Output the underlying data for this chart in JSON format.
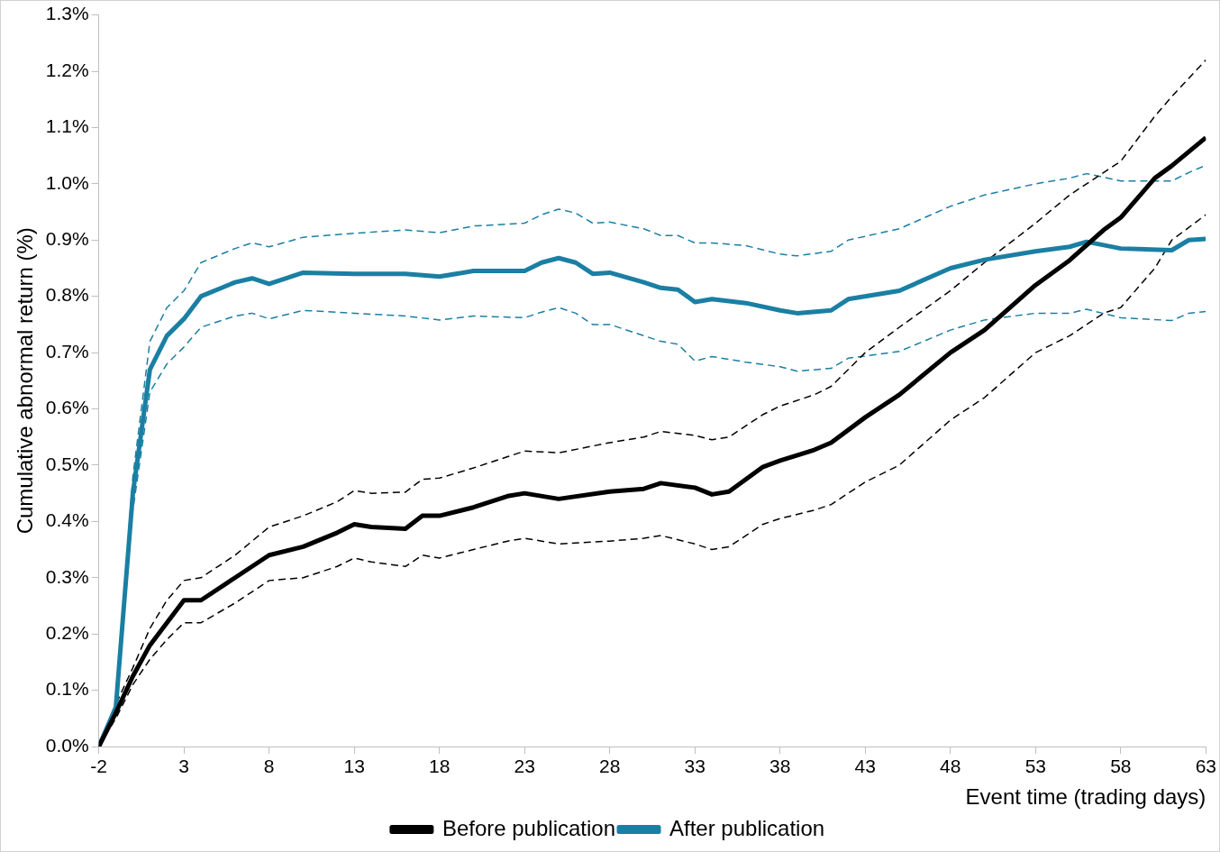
{
  "chart_data": {
    "type": "line",
    "xlabel": "Event time (trading days)",
    "ylabel": "Cumulative abnormal return (%)",
    "xlim": [
      -2,
      63
    ],
    "xticks": [
      -2,
      3,
      8,
      13,
      18,
      23,
      28,
      33,
      38,
      43,
      48,
      53,
      58,
      63
    ],
    "ylim": [
      0,
      1.3
    ],
    "yticks": [
      {
        "value": 0,
        "label": "0.0%"
      },
      {
        "value": 0.1,
        "label": "0.1%"
      },
      {
        "value": 0.2,
        "label": "0.2%"
      },
      {
        "value": 0.3,
        "label": "0.3%"
      },
      {
        "value": 0.4,
        "label": "0.4%"
      },
      {
        "value": 0.5,
        "label": "0.5%"
      },
      {
        "value": 0.6,
        "label": "0.6%"
      },
      {
        "value": 0.7,
        "label": "0.7%"
      },
      {
        "value": 0.8,
        "label": "0.8%"
      },
      {
        "value": 0.9,
        "label": "0.9%"
      },
      {
        "value": 1.0,
        "label": "1.0%"
      },
      {
        "value": 1.1,
        "label": "1.1%"
      },
      {
        "value": 1.2,
        "label": "1.2%"
      },
      {
        "value": 1.3,
        "label": "1.3%"
      }
    ],
    "grid": false,
    "legend": "bottom",
    "marker": "none",
    "line_style": "solid",
    "series": [
      {
        "name": "Before publication",
        "color": "#000000",
        "x": [
          -2,
          -1,
          0,
          1,
          2,
          3,
          4,
          6,
          8,
          10,
          12,
          13,
          14,
          16,
          17,
          18,
          20,
          22,
          23,
          25,
          28,
          30,
          31,
          33,
          34,
          35,
          37,
          38,
          40,
          41,
          43,
          45,
          48,
          50,
          53,
          55,
          57,
          58,
          60,
          61,
          63
        ],
        "values": [
          0,
          0.06,
          0.125,
          0.18,
          0.22,
          0.26,
          0.26,
          0.3,
          0.34,
          0.355,
          0.38,
          0.395,
          0.39,
          0.387,
          0.41,
          0.41,
          0.425,
          0.445,
          0.45,
          0.44,
          0.453,
          0.458,
          0.468,
          0.46,
          0.448,
          0.453,
          0.497,
          0.508,
          0.527,
          0.54,
          0.585,
          0.625,
          0.7,
          0.74,
          0.82,
          0.864,
          0.918,
          0.94,
          1.01,
          1.032,
          1.082
        ]
      },
      {
        "name": "After publication",
        "color": "#1a7fa3",
        "x": [
          -2,
          -1,
          0,
          1,
          2,
          3,
          4,
          6,
          7,
          8,
          10,
          13,
          16,
          18,
          20,
          23,
          24,
          25,
          26,
          27,
          28,
          30,
          31,
          32,
          33,
          34,
          36,
          38,
          39,
          41,
          42,
          45,
          48,
          50,
          53,
          55,
          56,
          58,
          61,
          62,
          63
        ],
        "values": [
          0,
          0.07,
          0.45,
          0.67,
          0.73,
          0.76,
          0.8,
          0.825,
          0.832,
          0.822,
          0.842,
          0.84,
          0.84,
          0.835,
          0.845,
          0.845,
          0.86,
          0.868,
          0.86,
          0.84,
          0.842,
          0.825,
          0.815,
          0.812,
          0.79,
          0.795,
          0.788,
          0.775,
          0.77,
          0.775,
          0.795,
          0.81,
          0.85,
          0.865,
          0.88,
          0.888,
          0.897,
          0.885,
          0.882,
          0.9,
          0.902
        ]
      },
      {
        "color": "#000000",
        "line_style": "dashed",
        "x": [
          -2,
          -1,
          0,
          1,
          2,
          3,
          4,
          6,
          8,
          10,
          12,
          13,
          14,
          16,
          17,
          18,
          20,
          22,
          23,
          25,
          28,
          30,
          31,
          33,
          34,
          35,
          37,
          38,
          40,
          41,
          43,
          45,
          48,
          50,
          53,
          55,
          57,
          58,
          60,
          61,
          63
        ],
        "values": [
          0,
          0.075,
          0.14,
          0.21,
          0.26,
          0.295,
          0.3,
          0.34,
          0.39,
          0.41,
          0.435,
          0.455,
          0.45,
          0.452,
          0.475,
          0.477,
          0.495,
          0.515,
          0.525,
          0.522,
          0.54,
          0.55,
          0.56,
          0.553,
          0.545,
          0.55,
          0.59,
          0.605,
          0.625,
          0.64,
          0.7,
          0.745,
          0.81,
          0.86,
          0.93,
          0.98,
          1.02,
          1.04,
          1.12,
          1.155,
          1.22
        ]
      },
      {
        "color": "#000000",
        "line_style": "dashed",
        "x": [
          -2,
          -1,
          0,
          1,
          2,
          3,
          4,
          6,
          8,
          10,
          12,
          13,
          14,
          16,
          17,
          18,
          20,
          22,
          23,
          25,
          28,
          30,
          31,
          33,
          34,
          35,
          37,
          38,
          40,
          41,
          43,
          45,
          48,
          50,
          53,
          55,
          57,
          58,
          60,
          61,
          63
        ],
        "values": [
          0,
          0.05,
          0.11,
          0.155,
          0.19,
          0.22,
          0.22,
          0.255,
          0.295,
          0.3,
          0.32,
          0.335,
          0.328,
          0.32,
          0.34,
          0.335,
          0.35,
          0.365,
          0.37,
          0.36,
          0.365,
          0.37,
          0.375,
          0.36,
          0.35,
          0.355,
          0.395,
          0.405,
          0.42,
          0.43,
          0.47,
          0.5,
          0.58,
          0.62,
          0.7,
          0.73,
          0.77,
          0.78,
          0.85,
          0.9,
          0.945
        ]
      },
      {
        "color": "#1a7fa3",
        "line_style": "dashed",
        "x": [
          -2,
          -1,
          0,
          1,
          2,
          3,
          4,
          6,
          7,
          8,
          10,
          13,
          16,
          18,
          20,
          23,
          24,
          25,
          26,
          27,
          28,
          30,
          31,
          32,
          33,
          34,
          36,
          38,
          39,
          41,
          42,
          45,
          48,
          50,
          53,
          55,
          56,
          58,
          61,
          62,
          63
        ],
        "values": [
          0,
          0.07,
          0.48,
          0.72,
          0.78,
          0.81,
          0.86,
          0.885,
          0.895,
          0.888,
          0.905,
          0.912,
          0.918,
          0.913,
          0.925,
          0.93,
          0.945,
          0.955,
          0.948,
          0.93,
          0.932,
          0.92,
          0.908,
          0.908,
          0.895,
          0.895,
          0.89,
          0.875,
          0.872,
          0.88,
          0.9,
          0.92,
          0.96,
          0.98,
          1.0,
          1.01,
          1.018,
          1.005,
          1.005,
          1.02,
          1.033
        ]
      },
      {
        "color": "#1a7fa3",
        "line_style": "dashed",
        "x": [
          -2,
          -1,
          0,
          1,
          2,
          3,
          4,
          6,
          7,
          8,
          10,
          13,
          16,
          18,
          20,
          23,
          24,
          25,
          26,
          27,
          28,
          30,
          31,
          32,
          33,
          34,
          36,
          38,
          39,
          41,
          42,
          45,
          48,
          50,
          53,
          55,
          56,
          58,
          61,
          62,
          63
        ],
        "values": [
          0,
          0.07,
          0.42,
          0.63,
          0.68,
          0.71,
          0.745,
          0.765,
          0.77,
          0.76,
          0.775,
          0.77,
          0.765,
          0.758,
          0.765,
          0.762,
          0.772,
          0.78,
          0.77,
          0.75,
          0.75,
          0.73,
          0.72,
          0.715,
          0.685,
          0.693,
          0.683,
          0.675,
          0.667,
          0.672,
          0.69,
          0.702,
          0.74,
          0.758,
          0.77,
          0.77,
          0.777,
          0.762,
          0.757,
          0.77,
          0.773
        ]
      }
    ]
  }
}
